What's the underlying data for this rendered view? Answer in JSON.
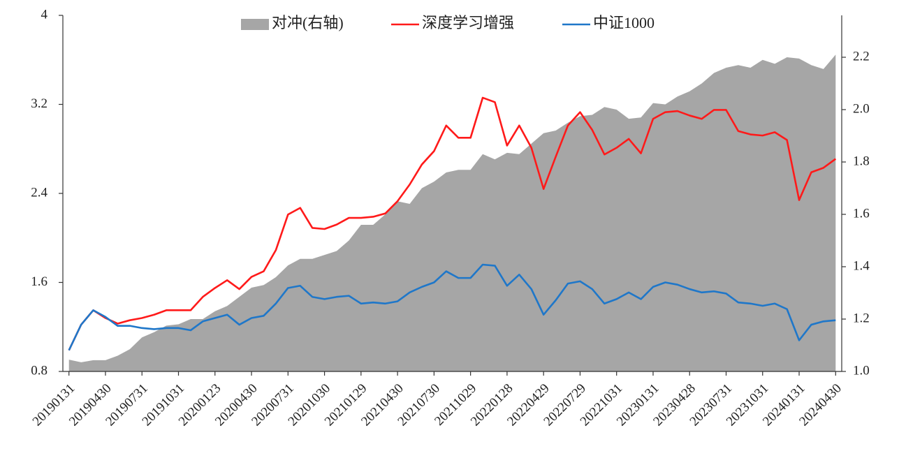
{
  "chart_data": {
    "type": "line",
    "categories": [
      "20190131",
      null,
      null,
      "20190430",
      null,
      null,
      "20190731",
      null,
      null,
      "20191031",
      null,
      null,
      "20200123",
      null,
      null,
      "20200430",
      null,
      null,
      "20200731",
      null,
      null,
      "20201030",
      null,
      null,
      "20210129",
      null,
      null,
      "20210430",
      null,
      null,
      "20210730",
      null,
      null,
      "20211029",
      null,
      null,
      "20220128",
      null,
      null,
      "20220429",
      null,
      null,
      "20220729",
      null,
      null,
      "20221031",
      null,
      null,
      "20230131",
      null,
      null,
      "20230428",
      null,
      null,
      "20230731",
      null,
      null,
      "20231031",
      null,
      null,
      "20240131",
      null,
      null,
      "20240430"
    ],
    "series": [
      {
        "name": "对冲(右轴)",
        "color": "#a6a6a6",
        "kind": "area",
        "axis": "y2",
        "values": [
          1.045,
          1.035,
          1.043,
          1.043,
          1.06,
          1.085,
          1.13,
          1.15,
          1.175,
          1.18,
          1.2,
          1.2,
          1.23,
          1.25,
          1.285,
          1.32,
          1.33,
          1.36,
          1.405,
          1.43,
          1.43,
          1.445,
          1.46,
          1.5,
          1.56,
          1.56,
          1.6,
          1.65,
          1.64,
          1.7,
          1.725,
          1.76,
          1.77,
          1.77,
          1.83,
          1.81,
          1.835,
          1.83,
          1.87,
          1.91,
          1.92,
          1.95,
          1.975,
          1.98,
          2.01,
          2.0,
          1.965,
          1.97,
          2.025,
          2.02,
          2.05,
          2.07,
          2.1,
          2.14,
          2.16,
          2.17,
          2.16,
          2.19,
          2.175,
          2.2,
          2.195,
          2.17,
          2.155,
          2.21
        ]
      },
      {
        "name": "深度学习增强",
        "color": "#ff1a1a",
        "values": [
          0.99,
          1.22,
          1.35,
          1.28,
          1.23,
          1.26,
          1.28,
          1.31,
          1.35,
          1.35,
          1.35,
          1.47,
          1.55,
          1.62,
          1.54,
          1.65,
          1.7,
          1.89,
          2.21,
          2.27,
          2.09,
          2.08,
          2.12,
          2.18,
          2.18,
          2.19,
          2.22,
          2.33,
          2.48,
          2.66,
          2.78,
          3.01,
          2.9,
          2.9,
          3.26,
          3.22,
          2.83,
          3.01,
          2.81,
          2.44,
          2.73,
          3.01,
          3.13,
          2.97,
          2.75,
          2.81,
          2.89,
          2.76,
          3.07,
          3.13,
          3.14,
          3.1,
          3.07,
          3.15,
          3.15,
          2.96,
          2.93,
          2.92,
          2.95,
          2.88,
          2.34,
          2.59,
          2.63,
          2.71
        ]
      },
      {
        "name": "中证1000",
        "color": "#1f77c9",
        "values": [
          0.99,
          1.22,
          1.35,
          1.29,
          1.21,
          1.21,
          1.19,
          1.18,
          1.19,
          1.19,
          1.17,
          1.25,
          1.28,
          1.31,
          1.22,
          1.28,
          1.3,
          1.41,
          1.55,
          1.57,
          1.47,
          1.45,
          1.47,
          1.48,
          1.41,
          1.42,
          1.41,
          1.43,
          1.51,
          1.56,
          1.6,
          1.7,
          1.64,
          1.64,
          1.76,
          1.75,
          1.57,
          1.67,
          1.54,
          1.31,
          1.44,
          1.59,
          1.61,
          1.54,
          1.41,
          1.45,
          1.51,
          1.45,
          1.56,
          1.6,
          1.58,
          1.54,
          1.51,
          1.52,
          1.5,
          1.42,
          1.41,
          1.39,
          1.41,
          1.36,
          1.08,
          1.22,
          1.25,
          1.26
        ]
      }
    ],
    "ylim": [
      0.8,
      4
    ],
    "yticks": [
      0.8,
      1.6,
      2.4,
      3.2,
      4
    ],
    "y2lim": [
      1.0,
      2.36
    ],
    "y2ticks": [
      {
        "value": 1,
        "label": "1.0"
      },
      1.2,
      1.4,
      1.6,
      1.8,
      {
        "value": 2,
        "label": "2.0"
      },
      2.2
    ],
    "legend": "top"
  }
}
